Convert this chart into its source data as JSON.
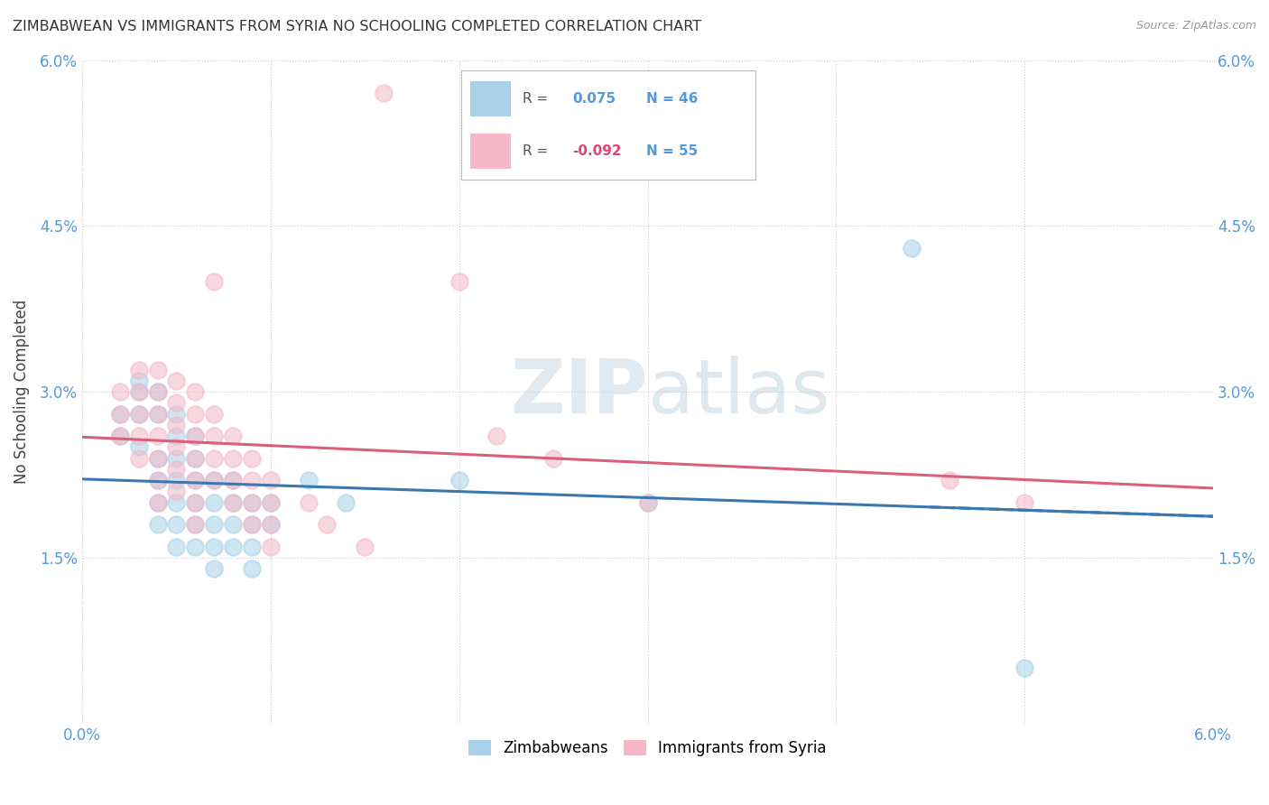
{
  "title": "ZIMBABWEAN VS IMMIGRANTS FROM SYRIA NO SCHOOLING COMPLETED CORRELATION CHART",
  "source": "Source: ZipAtlas.com",
  "ylabel": "No Schooling Completed",
  "xlim": [
    0.0,
    0.06
  ],
  "ylim": [
    0.0,
    0.06
  ],
  "xticks": [
    0.0,
    0.01,
    0.02,
    0.03,
    0.04,
    0.05,
    0.06
  ],
  "yticks": [
    0.0,
    0.015,
    0.03,
    0.045,
    0.06
  ],
  "r_zim": 0.075,
  "n_zim": 46,
  "r_syr": -0.092,
  "n_syr": 55,
  "legend_labels": [
    "Zimbabweans",
    "Immigrants from Syria"
  ],
  "zim_color": "#a8d0e8",
  "syr_color": "#f4b8c8",
  "zim_line_color": "#3a78b0",
  "syr_line_color": "#d9607a",
  "watermark_zip": "ZIP",
  "watermark_atlas": "atlas",
  "background_color": "#ffffff",
  "grid_color": "#cccccc",
  "zim_points": [
    [
      0.002,
      0.028
    ],
    [
      0.002,
      0.026
    ],
    [
      0.003,
      0.031
    ],
    [
      0.003,
      0.03
    ],
    [
      0.003,
      0.028
    ],
    [
      0.003,
      0.025
    ],
    [
      0.004,
      0.03
    ],
    [
      0.004,
      0.028
    ],
    [
      0.004,
      0.024
    ],
    [
      0.004,
      0.022
    ],
    [
      0.004,
      0.02
    ],
    [
      0.004,
      0.018
    ],
    [
      0.005,
      0.028
    ],
    [
      0.005,
      0.026
    ],
    [
      0.005,
      0.024
    ],
    [
      0.005,
      0.022
    ],
    [
      0.005,
      0.02
    ],
    [
      0.005,
      0.018
    ],
    [
      0.005,
      0.016
    ],
    [
      0.006,
      0.026
    ],
    [
      0.006,
      0.024
    ],
    [
      0.006,
      0.022
    ],
    [
      0.006,
      0.02
    ],
    [
      0.006,
      0.018
    ],
    [
      0.006,
      0.016
    ],
    [
      0.007,
      0.022
    ],
    [
      0.007,
      0.02
    ],
    [
      0.007,
      0.018
    ],
    [
      0.007,
      0.016
    ],
    [
      0.007,
      0.014
    ],
    [
      0.008,
      0.022
    ],
    [
      0.008,
      0.02
    ],
    [
      0.008,
      0.018
    ],
    [
      0.008,
      0.016
    ],
    [
      0.009,
      0.02
    ],
    [
      0.009,
      0.018
    ],
    [
      0.009,
      0.016
    ],
    [
      0.009,
      0.014
    ],
    [
      0.01,
      0.02
    ],
    [
      0.01,
      0.018
    ],
    [
      0.012,
      0.022
    ],
    [
      0.014,
      0.02
    ],
    [
      0.02,
      0.022
    ],
    [
      0.03,
      0.02
    ],
    [
      0.044,
      0.043
    ],
    [
      0.05,
      0.005
    ]
  ],
  "syr_points": [
    [
      0.002,
      0.03
    ],
    [
      0.002,
      0.028
    ],
    [
      0.002,
      0.026
    ],
    [
      0.003,
      0.032
    ],
    [
      0.003,
      0.03
    ],
    [
      0.003,
      0.028
    ],
    [
      0.003,
      0.026
    ],
    [
      0.003,
      0.024
    ],
    [
      0.004,
      0.032
    ],
    [
      0.004,
      0.03
    ],
    [
      0.004,
      0.028
    ],
    [
      0.004,
      0.026
    ],
    [
      0.004,
      0.024
    ],
    [
      0.004,
      0.022
    ],
    [
      0.004,
      0.02
    ],
    [
      0.005,
      0.031
    ],
    [
      0.005,
      0.029
    ],
    [
      0.005,
      0.027
    ],
    [
      0.005,
      0.025
    ],
    [
      0.005,
      0.023
    ],
    [
      0.005,
      0.021
    ],
    [
      0.006,
      0.03
    ],
    [
      0.006,
      0.028
    ],
    [
      0.006,
      0.026
    ],
    [
      0.006,
      0.024
    ],
    [
      0.006,
      0.022
    ],
    [
      0.006,
      0.02
    ],
    [
      0.006,
      0.018
    ],
    [
      0.007,
      0.028
    ],
    [
      0.007,
      0.026
    ],
    [
      0.007,
      0.024
    ],
    [
      0.007,
      0.022
    ],
    [
      0.007,
      0.04
    ],
    [
      0.008,
      0.026
    ],
    [
      0.008,
      0.024
    ],
    [
      0.008,
      0.022
    ],
    [
      0.008,
      0.02
    ],
    [
      0.009,
      0.024
    ],
    [
      0.009,
      0.022
    ],
    [
      0.009,
      0.02
    ],
    [
      0.009,
      0.018
    ],
    [
      0.01,
      0.022
    ],
    [
      0.01,
      0.02
    ],
    [
      0.01,
      0.018
    ],
    [
      0.01,
      0.016
    ],
    [
      0.012,
      0.02
    ],
    [
      0.013,
      0.018
    ],
    [
      0.015,
      0.016
    ],
    [
      0.016,
      0.057
    ],
    [
      0.02,
      0.04
    ],
    [
      0.022,
      0.026
    ],
    [
      0.025,
      0.024
    ],
    [
      0.03,
      0.02
    ],
    [
      0.046,
      0.022
    ],
    [
      0.05,
      0.02
    ]
  ]
}
